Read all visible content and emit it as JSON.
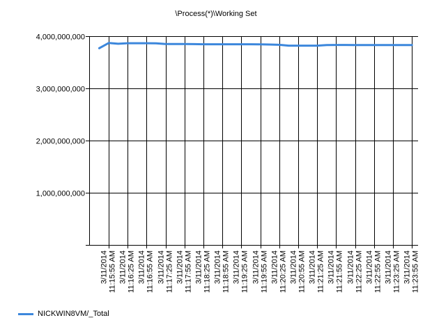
{
  "chart_data": {
    "type": "line",
    "title": "\\Process(*)\\Working Set",
    "xlabel": "",
    "ylabel": "",
    "ylim": [
      0,
      4000000000
    ],
    "yticks": [
      0,
      1000000000,
      2000000000,
      3000000000,
      4000000000
    ],
    "ytick_labels": [
      "",
      "1,000,000,000",
      "2,000,000,000",
      "3,000,000,000",
      "4,000,000,000"
    ],
    "x_tick_labels": [
      [
        "3/11/2014",
        "11:15:55 AM"
      ],
      [
        "3/11/2014",
        "11:16:25 AM"
      ],
      [
        "3/11/2014",
        "11:16:55 AM"
      ],
      [
        "3/11/2014",
        "11:17:25 AM"
      ],
      [
        "3/11/2014",
        "11:17:55 AM"
      ],
      [
        "3/11/2014",
        "11:18:25 AM"
      ],
      [
        "3/11/2014",
        "11:18:55 AM"
      ],
      [
        "3/11/2014",
        "11:19:25 AM"
      ],
      [
        "3/11/2014",
        "11:19:55 AM"
      ],
      [
        "3/11/2014",
        "11:20:25 AM"
      ],
      [
        "3/11/2014",
        "11:20:55 AM"
      ],
      [
        "3/11/2014",
        "11:21:25 AM"
      ],
      [
        "3/11/2014",
        "11:21:55 AM"
      ],
      [
        "3/11/2014",
        "11:22:25 AM"
      ],
      [
        "3/11/2014",
        "11:22:55 AM"
      ],
      [
        "3/11/2014",
        "11:23:25 AM"
      ],
      [
        "3/11/2014",
        "11:23:55 AM"
      ]
    ],
    "grid": true,
    "legend_position": "bottom-left",
    "series": [
      {
        "name": "NICKWIN8VM/_Total",
        "color": "#3c87dc",
        "points": [
          {
            "x": "11:15:40 AM",
            "y": 3770000000
          },
          {
            "x": "11:15:55 AM",
            "y": 3870000000
          },
          {
            "x": "11:16:10 AM",
            "y": 3855000000
          },
          {
            "x": "11:16:25 AM",
            "y": 3865000000
          },
          {
            "x": "11:16:40 AM",
            "y": 3865000000
          },
          {
            "x": "11:16:55 AM",
            "y": 3865000000
          },
          {
            "x": "11:17:10 AM",
            "y": 3862000000
          },
          {
            "x": "11:17:25 AM",
            "y": 3850000000
          },
          {
            "x": "11:17:40 AM",
            "y": 3850000000
          },
          {
            "x": "11:17:55 AM",
            "y": 3850000000
          },
          {
            "x": "11:18:10 AM",
            "y": 3848000000
          },
          {
            "x": "11:18:25 AM",
            "y": 3845000000
          },
          {
            "x": "11:18:40 AM",
            "y": 3845000000
          },
          {
            "x": "11:18:55 AM",
            "y": 3845000000
          },
          {
            "x": "11:19:10 AM",
            "y": 3845000000
          },
          {
            "x": "11:19:25 AM",
            "y": 3845000000
          },
          {
            "x": "11:19:40 AM",
            "y": 3845000000
          },
          {
            "x": "11:19:55 AM",
            "y": 3842000000
          },
          {
            "x": "11:20:10 AM",
            "y": 3840000000
          },
          {
            "x": "11:20:25 AM",
            "y": 3835000000
          },
          {
            "x": "11:20:40 AM",
            "y": 3818000000
          },
          {
            "x": "11:20:55 AM",
            "y": 3818000000
          },
          {
            "x": "11:21:10 AM",
            "y": 3818000000
          },
          {
            "x": "11:21:25 AM",
            "y": 3818000000
          },
          {
            "x": "11:21:40 AM",
            "y": 3830000000
          },
          {
            "x": "11:21:55 AM",
            "y": 3832000000
          },
          {
            "x": "11:22:10 AM",
            "y": 3832000000
          },
          {
            "x": "11:22:25 AM",
            "y": 3830000000
          },
          {
            "x": "11:22:40 AM",
            "y": 3830000000
          },
          {
            "x": "11:22:55 AM",
            "y": 3830000000
          },
          {
            "x": "11:23:10 AM",
            "y": 3830000000
          },
          {
            "x": "11:23:25 AM",
            "y": 3830000000
          },
          {
            "x": "11:23:40 AM",
            "y": 3830000000
          },
          {
            "x": "11:23:55 AM",
            "y": 3830000000
          }
        ]
      }
    ]
  }
}
